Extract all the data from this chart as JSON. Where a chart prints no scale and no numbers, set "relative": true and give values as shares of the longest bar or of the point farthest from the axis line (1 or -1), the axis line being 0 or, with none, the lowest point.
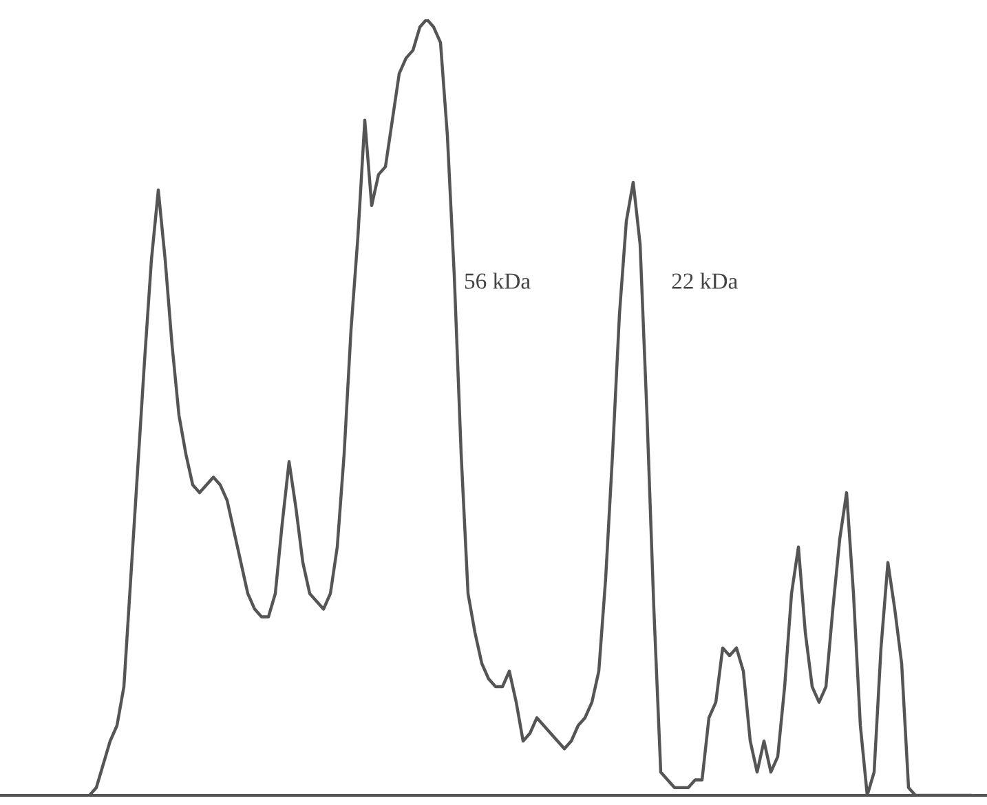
{
  "chart_data": {
    "type": "line",
    "relative": true,
    "color": "#555555",
    "categories": [
      null,
      null,
      null,
      null,
      null,
      null,
      null,
      null,
      null,
      null,
      null,
      null,
      null,
      null,
      null,
      null,
      null,
      null,
      null,
      null,
      null,
      null,
      null,
      null,
      null,
      null,
      null,
      null,
      null,
      null,
      null,
      null,
      null,
      null,
      null,
      null,
      null,
      null,
      null,
      null,
      null,
      null,
      null,
      null,
      null,
      null,
      null,
      null,
      null,
      null,
      null,
      null,
      null,
      null,
      null,
      null,
      null,
      null,
      null,
      null,
      null,
      null,
      null,
      null,
      null,
      null,
      null,
      null,
      null,
      null,
      null,
      null,
      null,
      null,
      null,
      null,
      null,
      null,
      null,
      null,
      null,
      null,
      null,
      null,
      null,
      null,
      null,
      null,
      null,
      null,
      null,
      null,
      null,
      null,
      null,
      null,
      null,
      null,
      null,
      null,
      null,
      null,
      null,
      null,
      null,
      null,
      null,
      null,
      null,
      null,
      null,
      null,
      null,
      null,
      null,
      null,
      null,
      null,
      null,
      null,
      null,
      null,
      null,
      null,
      null,
      null,
      null,
      null,
      null
    ],
    "values": [
      0,
      0.01,
      0.04,
      0.07,
      0.09,
      0.14,
      0.28,
      0.42,
      0.56,
      0.69,
      0.78,
      0.69,
      0.58,
      0.49,
      0.44,
      0.4,
      0.39,
      0.4,
      0.41,
      0.4,
      0.38,
      0.34,
      0.3,
      0.26,
      0.24,
      0.23,
      0.23,
      0.26,
      0.35,
      0.43,
      0.37,
      0.3,
      0.26,
      0.25,
      0.24,
      0.26,
      0.32,
      0.44,
      0.6,
      0.72,
      0.87,
      0.76,
      0.8,
      0.81,
      0.87,
      0.93,
      0.95,
      0.96,
      0.99,
      1,
      0.99,
      0.97,
      0.85,
      0.67,
      0.44,
      0.26,
      0.21,
      0.17,
      0.15,
      0.14,
      0.14,
      0.16,
      0.12,
      0.07,
      0.08,
      0.1,
      0.09,
      0.08,
      0.07,
      0.06,
      0.07,
      0.09,
      0.1,
      0.12,
      0.16,
      0.28,
      0.44,
      0.62,
      0.74,
      0.79,
      0.71,
      0.49,
      0.24,
      0.03,
      0.02,
      0.01,
      0.01,
      0.01,
      0.02,
      0.02,
      0.1,
      0.12,
      0.19,
      0.18,
      0.19,
      0.16,
      0.07,
      0.03,
      0.07,
      0.03,
      0.05,
      0.14,
      0.26,
      0.32,
      0.21,
      0.14,
      0.12,
      0.14,
      0.24,
      0.33,
      0.39,
      0.26,
      0.09,
      0,
      0.03,
      0.19,
      0.3,
      0.24,
      0.17,
      0.01,
      0,
      0,
      0,
      0,
      0,
      0,
      0,
      0,
      0
    ],
    "annotations": [
      "56 kDa",
      "22 kDa"
    ]
  }
}
